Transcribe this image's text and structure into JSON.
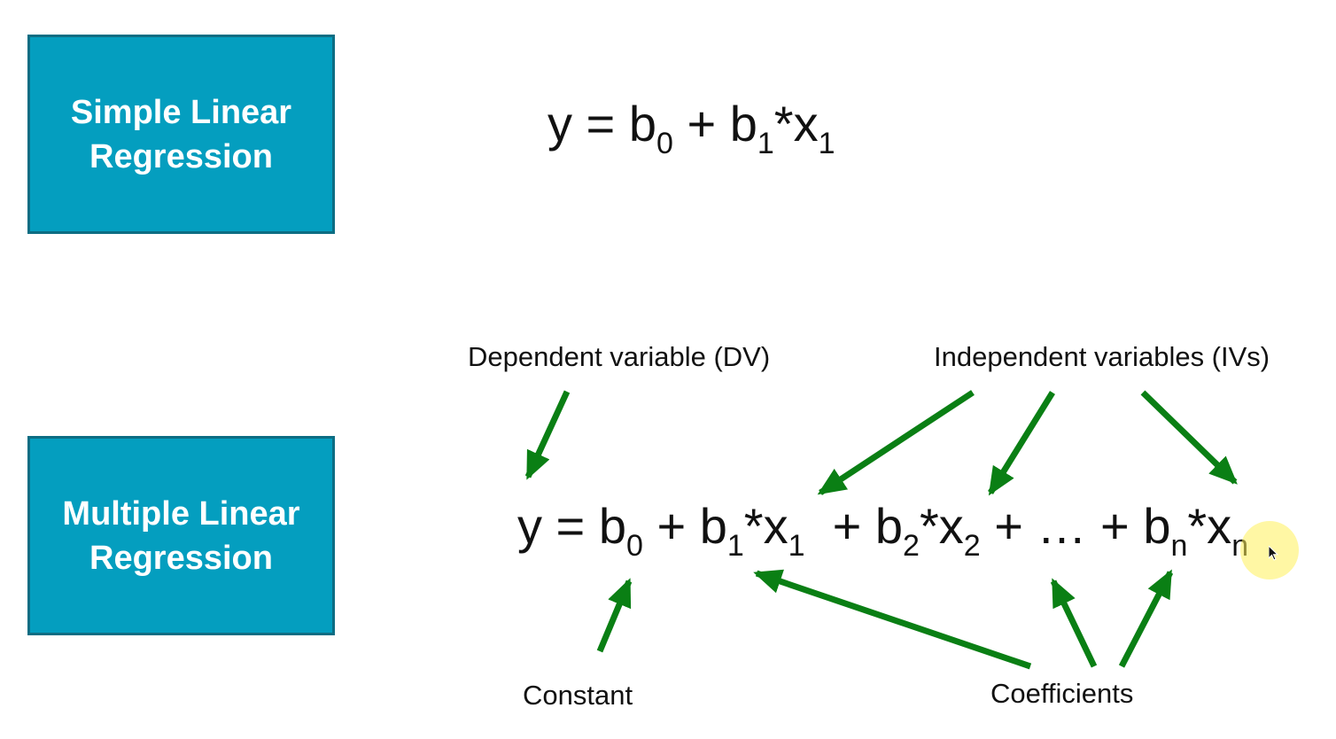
{
  "colors": {
    "box_fill": "#049ebf",
    "box_border": "#0d6d83",
    "arrow": "#0a7f14",
    "cursor_highlight": "#fff05a"
  },
  "boxes": {
    "simple": {
      "line1": "Simple Linear",
      "line2": "Regression"
    },
    "multiple": {
      "line1": "Multiple Linear",
      "line2": "Regression"
    }
  },
  "equations": {
    "simple": {
      "y": "y = b",
      "s0": "0",
      "plus1": " + b",
      "s1": "1",
      "x1": "*x",
      "sx1": "1"
    },
    "multiple": {
      "y": "y = b",
      "s0": "0",
      "plus1": " + b",
      "s1": "1",
      "x1": "*x",
      "sx1": "1",
      "plus2": "  + b",
      "s2": "2",
      "x2": "*x",
      "sx2": "2",
      "ellipsis": " + … + b",
      "sn": "n",
      "xn": "*x",
      "sxn": "n"
    }
  },
  "labels": {
    "dv": "Dependent variable (DV)",
    "iv": "Independent variables (IVs)",
    "constant": "Constant",
    "coefficients": "Coefficients"
  },
  "icons": {
    "cursor": "mouse-pointer-icon",
    "arrow": "arrow-icon"
  }
}
